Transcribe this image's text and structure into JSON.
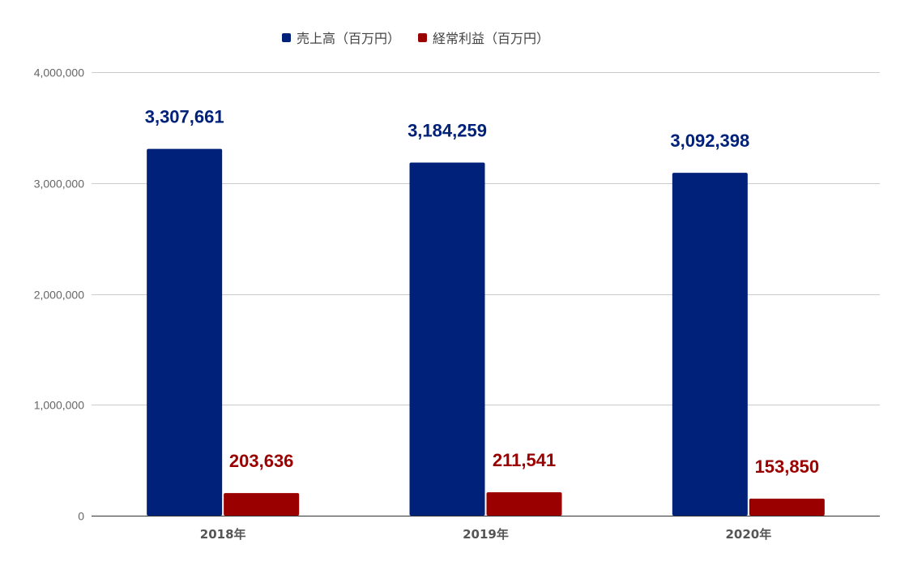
{
  "chart_data": {
    "type": "bar",
    "categories": [
      "2018年",
      "2019年",
      "2020年"
    ],
    "series": [
      {
        "name": "売上高（百万円）",
        "values": [
          3307661,
          3184259,
          3092398
        ],
        "labels": [
          "3,307,661",
          "3,184,259",
          "3,092,398"
        ],
        "color": "#002179"
      },
      {
        "name": "経常利益（百万円）",
        "values": [
          203636,
          211541,
          153850
        ],
        "labels": [
          "203,636",
          "211,541",
          "153,850"
        ],
        "color": "#9a0000"
      }
    ],
    "title": "",
    "xlabel": "",
    "ylabel": "",
    "ylim": [
      0,
      4000000
    ],
    "yticks": [
      {
        "value": 0,
        "label": "0"
      },
      {
        "value": 1000000,
        "label": "1,000,000"
      },
      {
        "value": 2000000,
        "label": "2,000,000"
      },
      {
        "value": 3000000,
        "label": "3,000,000"
      },
      {
        "value": 4000000,
        "label": "4,000,000"
      }
    ],
    "grid": true,
    "legend": "top"
  },
  "colors": {
    "grid": "#cccccc",
    "baseline": "#333333"
  }
}
